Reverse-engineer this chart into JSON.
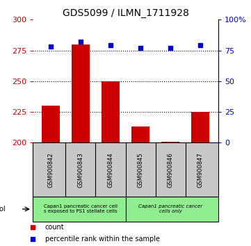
{
  "title": "GDS5099 / ILMN_1711928",
  "samples": [
    "GSM900842",
    "GSM900843",
    "GSM900844",
    "GSM900845",
    "GSM900846",
    "GSM900847"
  ],
  "count_values": [
    230,
    280,
    250,
    213,
    201,
    225
  ],
  "percentile_values": [
    78,
    82,
    79,
    77,
    77,
    79
  ],
  "left_ylim": [
    200,
    300
  ],
  "right_ylim": [
    0,
    100
  ],
  "left_yticks": [
    200,
    225,
    250,
    275,
    300
  ],
  "right_yticks": [
    0,
    25,
    50,
    75,
    100
  ],
  "right_yticklabels": [
    "0",
    "25",
    "50",
    "75",
    "100%"
  ],
  "bar_color": "#cc0000",
  "marker_color": "#0000cc",
  "dotted_lines": [
    225,
    250,
    275
  ],
  "protocol_label_1": "Capan1 pancreatic cancer cell\ns exposed to PS1 stellate cells",
  "protocol_label_2": "Capan1 pancreatic cancer\ncells only",
  "protocol_color": "#90ee90",
  "tick_area_color": "#c8c8c8",
  "tick_label_color_left": "#cc0000",
  "tick_label_color_right": "#0000cc",
  "bar_width": 0.6,
  "background_color": "#ffffff"
}
